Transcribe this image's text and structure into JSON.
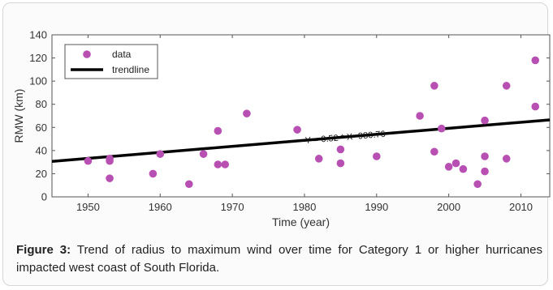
{
  "chart_data": {
    "type": "scatter",
    "xlabel": "Time (year)",
    "ylabel": "RMW (km)",
    "xlim": [
      1945,
      2014
    ],
    "ylim": [
      0,
      140
    ],
    "xticks": [
      1950,
      1960,
      1970,
      1980,
      1990,
      2000,
      2010
    ],
    "yticks": [
      0,
      20,
      40,
      60,
      80,
      100,
      120,
      140
    ],
    "grid": false,
    "legend_position": "top-left",
    "legend": [
      "data",
      "trendline"
    ],
    "series": [
      {
        "name": "data",
        "marker_color": "#b84fb3",
        "points": [
          [
            1950,
            31
          ],
          [
            1953,
            33
          ],
          [
            1953,
            31
          ],
          [
            1953,
            16
          ],
          [
            1959,
            20
          ],
          [
            1960,
            37
          ],
          [
            1964,
            11
          ],
          [
            1966,
            37
          ],
          [
            1968,
            57
          ],
          [
            1968,
            28
          ],
          [
            1969,
            28
          ],
          [
            1972,
            72
          ],
          [
            1979,
            58
          ],
          [
            1982,
            33
          ],
          [
            1985,
            41
          ],
          [
            1985,
            29
          ],
          [
            1990,
            35
          ],
          [
            1996,
            70
          ],
          [
            1998,
            96
          ],
          [
            1998,
            39
          ],
          [
            1999,
            59
          ],
          [
            2000,
            26
          ],
          [
            2001,
            29
          ],
          [
            2002,
            24
          ],
          [
            2004,
            11
          ],
          [
            2005,
            66
          ],
          [
            2005,
            35
          ],
          [
            2005,
            22
          ],
          [
            2008,
            96
          ],
          [
            2008,
            33
          ],
          [
            2012,
            118
          ],
          [
            2012,
            78
          ]
        ]
      },
      {
        "name": "trendline",
        "line_color": "#000000",
        "slope": 0.52,
        "intercept": -980.76
      }
    ],
    "annotation": "Y = 0.52 * X -980.76"
  },
  "caption": {
    "label": "Figure 3:",
    "text": " Trend of radius to maximum wind over time for Category 1 or higher hurricanes impacted west coast of South Florida."
  }
}
